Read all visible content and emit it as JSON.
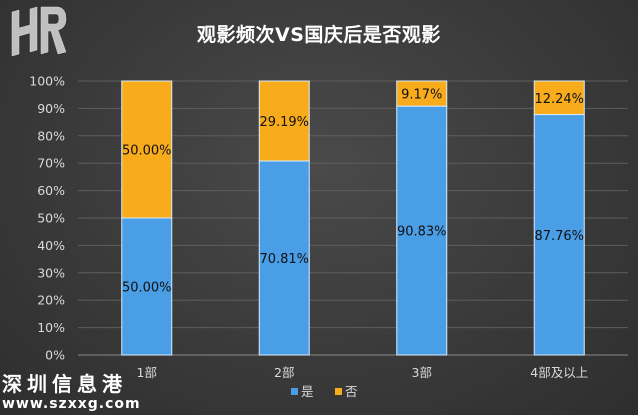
{
  "title": "观影频次VS国庆后是否观影",
  "watermark": {
    "name": "深圳信息港",
    "url": "www.szxxg.com"
  },
  "colors": {
    "yes": "#4a9ee6",
    "no": "#f8ac1c",
    "axis_text": "#d9d9d9",
    "grid": "#5e5e5e"
  },
  "chart_data": {
    "type": "bar",
    "stacked": true,
    "percent_stacked": true,
    "title": "观影频次VS国庆后是否观影",
    "categories": [
      "1部",
      "2部",
      "3部",
      "4部及以上"
    ],
    "series": [
      {
        "name": "是",
        "values": [
          50.0,
          70.81,
          90.83,
          87.76
        ],
        "labels": [
          "50.00%",
          "70.81%",
          "90.83%",
          "87.76%"
        ],
        "color": "#4a9ee6"
      },
      {
        "name": "否",
        "values": [
          50.0,
          29.19,
          9.17,
          12.24
        ],
        "labels": [
          "50.00%",
          "29.19%",
          "9.17%",
          "12.24%"
        ],
        "color": "#f8ac1c"
      }
    ],
    "y_ticks": [
      "0%",
      "10%",
      "20%",
      "30%",
      "40%",
      "50%",
      "60%",
      "70%",
      "80%",
      "90%",
      "100%"
    ],
    "ylim": [
      0,
      100
    ],
    "grid": true,
    "legend": "bottom"
  }
}
